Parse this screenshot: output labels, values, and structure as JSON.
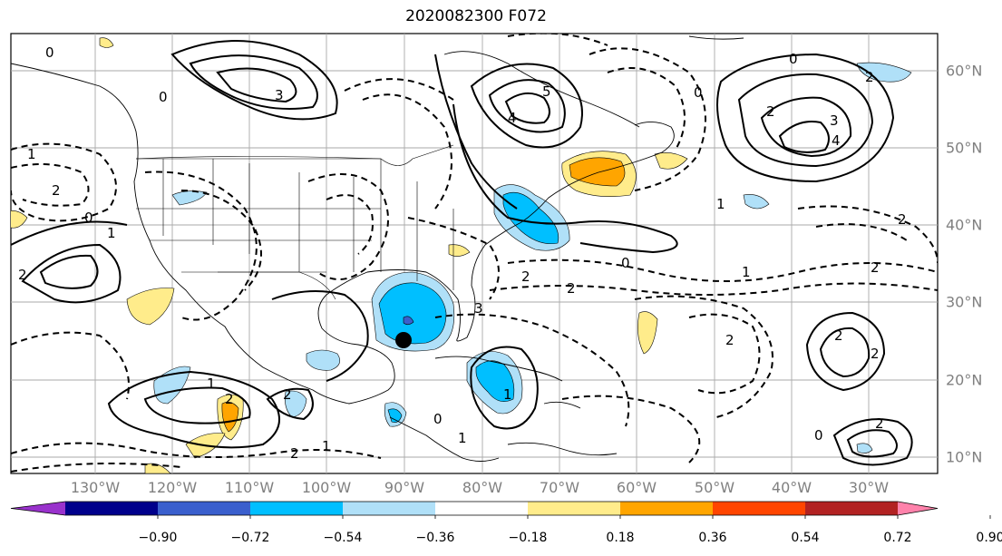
{
  "title": "2020082300 F072",
  "longitude_labels": [
    "130°W",
    "120°W",
    "110°W",
    "100°W",
    "90°W",
    "80°W",
    "70°W",
    "60°W",
    "50°W",
    "40°W",
    "30°W"
  ],
  "latitude_labels": [
    "60°N",
    "50°N",
    "40°N",
    "30°N",
    "20°N",
    "10°N"
  ],
  "contour_labels": {
    "positive": [
      "0",
      "1",
      "2",
      "3",
      "4",
      "5"
    ],
    "negative": [
      "0",
      "1",
      "2"
    ]
  },
  "colorbar": {
    "tick_labels": [
      "−0.90",
      "−0.72",
      "−0.54",
      "−0.36",
      "−0.18",
      "0.18",
      "0.36",
      "0.54",
      "0.72",
      "0.90"
    ],
    "colors": [
      "#9932cc",
      "#00008b",
      "#3a5fcd",
      "#00bfff",
      "#b0e0f8",
      "#ffffff",
      "#ffec8b",
      "#ffa500",
      "#ff4500",
      "#b22222",
      "#ff82ab"
    ]
  },
  "marker": {
    "label": "storm-center",
    "color": "#000000"
  }
}
